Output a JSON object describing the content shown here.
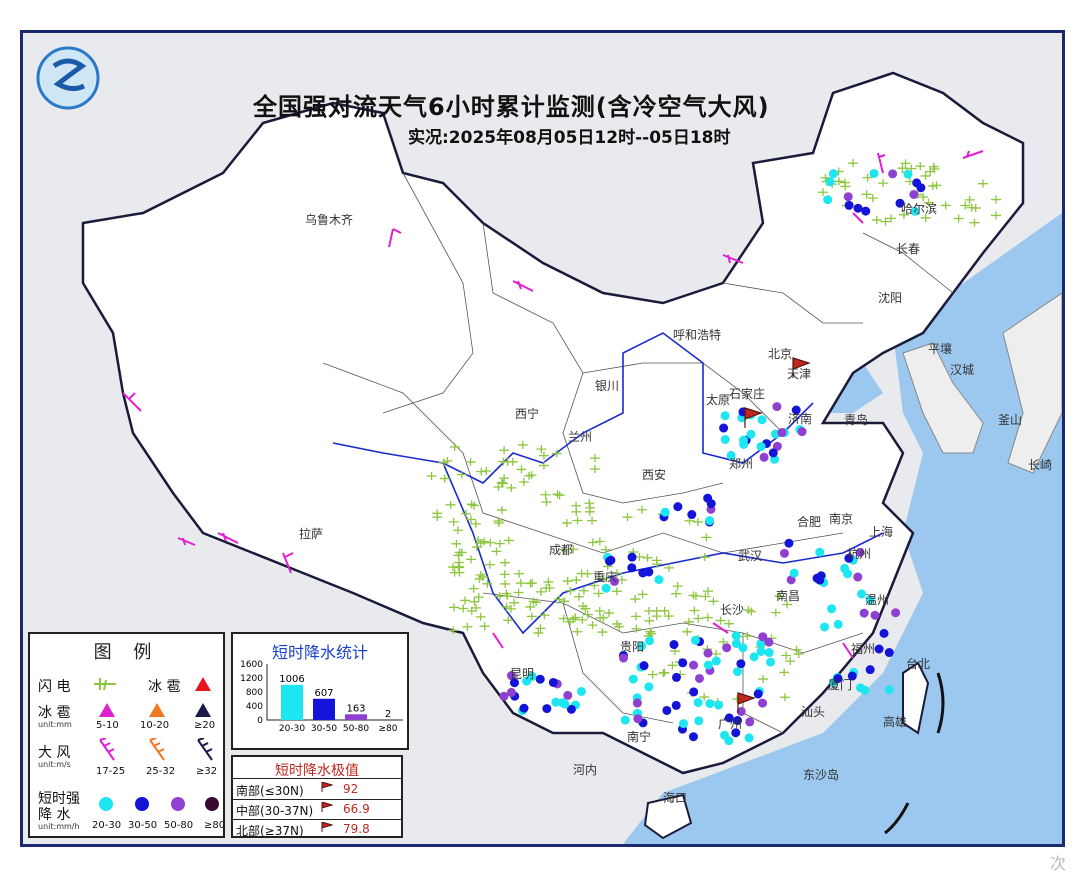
{
  "title": "全国强对流天气6小时累计监测(含冷空气大风)",
  "subtitle": "实况:2025年08月05日12时--05日18时",
  "cities": {
    "urumqi": "乌鲁木齐",
    "lhasa": "拉萨",
    "xining": "西宁",
    "lanzhou": "兰州",
    "yinchuan": "银川",
    "hohhot": "呼和浩特",
    "beijing": "北京",
    "tianjin": "天津",
    "shijiazhuang": "石家庄",
    "taiyuan": "太原",
    "jinan": "济南",
    "qingdao": "青岛",
    "zhengzhou": "郑州",
    "xian": "西安",
    "chengdu": "成都",
    "chongqing": "重庆",
    "wuhan": "武汉",
    "hefei": "合肥",
    "nanjing": "南京",
    "shanghai": "上海",
    "hangzhou": "杭州",
    "nanchang": "南昌",
    "changsha": "长沙",
    "guiyang": "贵阳",
    "kunming": "昆明",
    "nanning": "南宁",
    "guangzhou": "广州",
    "fuzhou": "福州",
    "taipei": "台北",
    "kaohsiung": "高雄",
    "haikou": "海口",
    "harbin": "哈尔滨",
    "changchun": "长春",
    "shenyang": "沈阳",
    "pyongyang": "平壤",
    "seoul": "汉城",
    "busan": "釜山",
    "nagasaki": "长崎",
    "hanoi": "河内",
    "dongsha": "东沙岛",
    "wenzhou": "温州",
    "xiamen": "厦门",
    "shantou": "汕头"
  },
  "legend": {
    "title": "图  例",
    "lightning": "闪 电",
    "hail_top": "冰 雹",
    "hail": "冰 雹",
    "hail_unit": "unit:mm",
    "hail_levels": [
      "5-10",
      "10-20",
      "≥20"
    ],
    "wind": "大 风",
    "wind_unit": "unit:m/s",
    "wind_levels": [
      "17-25",
      "25-32",
      "≥32"
    ],
    "rain": "短时强降 水",
    "rain_label_1": "短时强",
    "rain_label_2": "降  水",
    "rain_unit": "unit:mm/h",
    "rain_levels": [
      "20-30",
      "30-50",
      "50-80",
      "≥80"
    ],
    "colors": {
      "lightning": "#8dc63f",
      "hail_top": "#e8141e",
      "hail_levels": [
        "#e020d0",
        "#f07820",
        "#1a1a4a"
      ],
      "wind_levels": [
        "#e020d0",
        "#f07820",
        "#1a1a4a"
      ],
      "rain_levels": [
        "#1ee6f0",
        "#1414d8",
        "#9040d0",
        "#3a0a30"
      ]
    }
  },
  "stats": {
    "title": "短时降水统计",
    "y_ticks": [
      "1600",
      "1200",
      "800",
      "400",
      "0"
    ],
    "chart_data": {
      "type": "bar",
      "categories": [
        "20-30",
        "30-50",
        "50-80",
        "≥80"
      ],
      "values": [
        1006,
        607,
        163,
        2
      ],
      "ylim": [
        0,
        1600
      ],
      "colors": [
        "#1ee6f0",
        "#1414d8",
        "#9040d0",
        "#3a0a30"
      ]
    }
  },
  "extremes": {
    "title": "短时降水极值",
    "rows": [
      {
        "label": "南部(≤30N)",
        "value": "92"
      },
      {
        "label": "中部(30-37N)",
        "value": "66.9"
      },
      {
        "label": "北部(≥37N)",
        "value": "79.8"
      }
    ]
  },
  "watermark": "次"
}
